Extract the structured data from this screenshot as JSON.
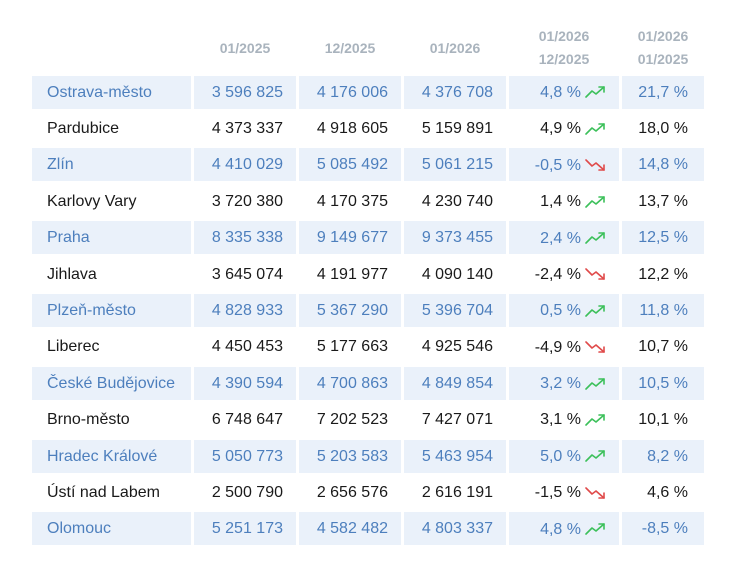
{
  "header": {
    "col1": "01/2025",
    "col2": "12/2025",
    "col3": "01/2026",
    "col4_top": "01/2026",
    "col4_bottom": "12/2025",
    "col5_top": "01/2026",
    "col5_bottom": "01/2025"
  },
  "colors": {
    "up": "#3cc05a",
    "down": "#e04a4a",
    "accent": "#4d7fbd",
    "stripe": "#eaf1fa"
  },
  "rows": [
    {
      "city": "Ostrava-město",
      "v2025_01": "3 596 825",
      "v2025_12": "4 176 006",
      "v2026_01": "4 376 708",
      "mom": "4,8 %",
      "mom_trend": "up",
      "yoy": "21,7 %"
    },
    {
      "city": "Pardubice",
      "v2025_01": "4 373 337",
      "v2025_12": "4 918 605",
      "v2026_01": "5 159 891",
      "mom": "4,9 %",
      "mom_trend": "up",
      "yoy": "18,0 %"
    },
    {
      "city": "Zlín",
      "v2025_01": "4 410 029",
      "v2025_12": "5 085 492",
      "v2026_01": "5 061 215",
      "mom": "-0,5 %",
      "mom_trend": "down",
      "yoy": "14,8 %"
    },
    {
      "city": "Karlovy Vary",
      "v2025_01": "3 720 380",
      "v2025_12": "4 170 375",
      "v2026_01": "4 230 740",
      "mom": "1,4 %",
      "mom_trend": "up",
      "yoy": "13,7 %"
    },
    {
      "city": "Praha",
      "v2025_01": "8 335 338",
      "v2025_12": "9 149 677",
      "v2026_01": "9 373 455",
      "mom": "2,4 %",
      "mom_trend": "up",
      "yoy": "12,5 %"
    },
    {
      "city": "Jihlava",
      "v2025_01": "3 645 074",
      "v2025_12": "4 191 977",
      "v2026_01": "4 090 140",
      "mom": "-2,4 %",
      "mom_trend": "down",
      "yoy": "12,2 %"
    },
    {
      "city": "Plzeň-město",
      "v2025_01": "4 828 933",
      "v2025_12": "5 367 290",
      "v2026_01": "5 396 704",
      "mom": "0,5 %",
      "mom_trend": "up",
      "yoy": "11,8 %"
    },
    {
      "city": "Liberec",
      "v2025_01": "4 450 453",
      "v2025_12": "5 177 663",
      "v2026_01": "4 925 546",
      "mom": "-4,9 %",
      "mom_trend": "down",
      "yoy": "10,7 %"
    },
    {
      "city": "České Budějovice",
      "v2025_01": "4 390 594",
      "v2025_12": "4 700 863",
      "v2026_01": "4 849 854",
      "mom": "3,2 %",
      "mom_trend": "up",
      "yoy": "10,5 %"
    },
    {
      "city": "Brno-město",
      "v2025_01": "6 748 647",
      "v2025_12": "7 202 523",
      "v2026_01": "7 427 071",
      "mom": "3,1 %",
      "mom_trend": "up",
      "yoy": "10,1 %"
    },
    {
      "city": "Hradec Králové",
      "v2025_01": "5 050 773",
      "v2025_12": "5 203 583",
      "v2026_01": "5 463 954",
      "mom": "5,0 %",
      "mom_trend": "up",
      "yoy": "8,2 %"
    },
    {
      "city": "Ústí nad Labem",
      "v2025_01": "2 500 790",
      "v2025_12": "2 656 576",
      "v2026_01": "2 616 191",
      "mom": "-1,5 %",
      "mom_trend": "down",
      "yoy": "4,6 %"
    },
    {
      "city": "Olomouc",
      "v2025_01": "5 251 173",
      "v2025_12": "4 582 482",
      "v2026_01": "4 803 337",
      "mom": "4,8 %",
      "mom_trend": "up",
      "yoy": "-8,5 %"
    }
  ]
}
